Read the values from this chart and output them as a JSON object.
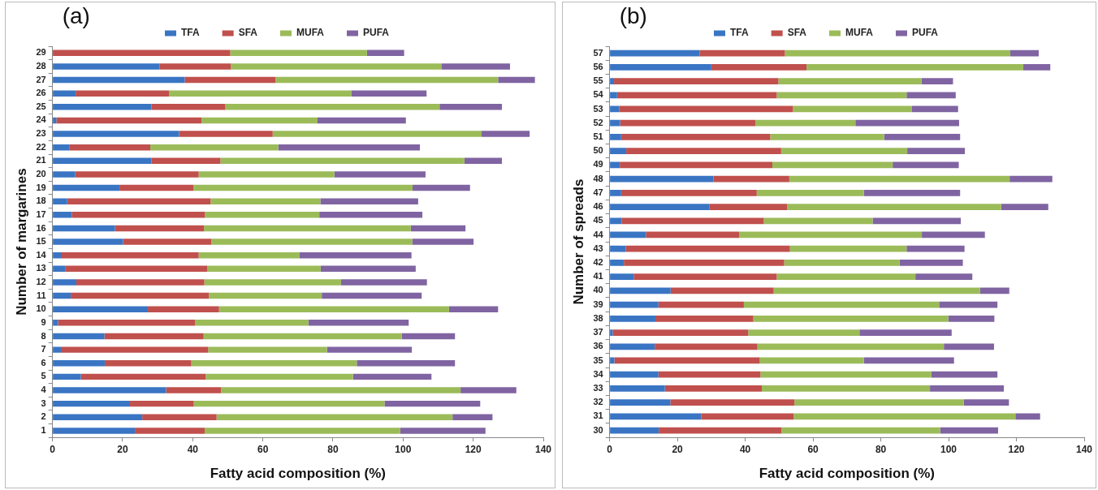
{
  "chart_data": [
    {
      "type": "bar",
      "title": "(a)",
      "xlabel": "Fatty acid composition (%)",
      "ylabel": "Number of margarines",
      "orientation": "horizontal",
      "stacked": true,
      "legend": "top",
      "grid": false,
      "xlim": [
        0,
        140
      ],
      "xticks": [
        0,
        20,
        40,
        60,
        80,
        100,
        120,
        140
      ],
      "categories": [
        "29",
        "28",
        "27",
        "26",
        "25",
        "24",
        "23",
        "22",
        "21",
        "20",
        "19",
        "18",
        "17",
        "16",
        "15",
        "14",
        "13",
        "12",
        "11",
        "10",
        "9",
        "8",
        "7",
        "6",
        "5",
        "4",
        "3",
        "2",
        "1"
      ],
      "series": [
        {
          "name": "TFA",
          "color": "#3a75c4",
          "values": [
            0,
            30.5,
            37.7,
            6.6,
            28.2,
            1.1,
            36.1,
            4.9,
            28.2,
            6.5,
            19.1,
            4.2,
            5.5,
            17.8,
            20.1,
            2.4,
            3.6,
            6.8,
            5.2,
            27.2,
            1.6,
            14.8,
            2.4,
            14.9,
            8.1,
            32.4,
            22.1,
            25.6,
            23.5
          ]
        },
        {
          "name": "SFA",
          "color": "#c0504d",
          "values": [
            50.7,
            20.4,
            25.9,
            26.7,
            21.1,
            41.4,
            26.7,
            23.0,
            19.7,
            35.2,
            21.1,
            40.9,
            38.0,
            25.4,
            25.2,
            39.3,
            40.5,
            36.5,
            39.4,
            20.3,
            39.1,
            28.3,
            42.0,
            24.7,
            35.6,
            15.7,
            18.2,
            21.2,
            19.9
          ]
        },
        {
          "name": "MUFA",
          "color": "#9bbb59",
          "values": [
            39.0,
            60.0,
            63.5,
            51.9,
            61.1,
            33.1,
            59.6,
            36.5,
            69.6,
            38.7,
            62.5,
            31.3,
            32.6,
            59.0,
            57.3,
            28.8,
            32.4,
            39.0,
            32.2,
            65.6,
            32.3,
            56.5,
            33.9,
            47.2,
            42.0,
            68.3,
            54.4,
            67.3,
            55.8
          ]
        },
        {
          "name": "PUFA",
          "color": "#8064a2",
          "values": [
            10.6,
            19.6,
            10.5,
            21.5,
            17.8,
            25.2,
            13.7,
            40.4,
            10.7,
            26.0,
            16.4,
            27.9,
            29.4,
            15.6,
            17.5,
            31.9,
            27.1,
            24.5,
            28.5,
            14.0,
            28.6,
            15.2,
            24.2,
            28.0,
            22.4,
            15.9,
            27.3,
            11.4,
            24.3
          ]
        }
      ]
    },
    {
      "type": "bar",
      "title": "(b)",
      "xlabel": "Fatty acid composition (%)",
      "ylabel": "Number of spreads",
      "orientation": "horizontal",
      "stacked": true,
      "legend": "top",
      "grid": false,
      "xlim": [
        0,
        140
      ],
      "xticks": [
        0,
        20,
        40,
        60,
        80,
        100,
        120,
        140
      ],
      "categories": [
        "57",
        "56",
        "55",
        "54",
        "53",
        "52",
        "51",
        "50",
        "49",
        "48",
        "47",
        "46",
        "45",
        "44",
        "43",
        "42",
        "41",
        "40",
        "39",
        "38",
        "37",
        "36",
        "35",
        "34",
        "33",
        "32",
        "31",
        "30"
      ],
      "series": [
        {
          "name": "TFA",
          "color": "#3a75c4",
          "values": [
            26.6,
            30.0,
            1.3,
            2.2,
            2.8,
            3.1,
            3.4,
            4.9,
            3.0,
            30.6,
            3.4,
            29.5,
            3.5,
            10.7,
            4.8,
            4.2,
            7.1,
            18.0,
            14.4,
            13.5,
            0.9,
            13.3,
            1.4,
            14.4,
            16.3,
            17.9,
            27.0,
            14.5
          ]
        },
        {
          "name": "SFA",
          "color": "#c0504d",
          "values": [
            25.1,
            28.1,
            48.5,
            47.1,
            51.3,
            39.9,
            44.0,
            45.7,
            45.0,
            22.4,
            40.0,
            22.9,
            42.0,
            27.5,
            48.4,
            47.3,
            42.2,
            30.4,
            25.2,
            28.9,
            40.0,
            30.3,
            42.9,
            30.1,
            28.6,
            36.6,
            27.3,
            36.2
          ]
        },
        {
          "name": "MUFA",
          "color": "#9bbb59",
          "values": [
            66.5,
            63.9,
            42.2,
            38.3,
            35.1,
            29.5,
            33.6,
            37.2,
            35.5,
            65.0,
            31.6,
            63.1,
            32.1,
            53.9,
            34.4,
            34.0,
            40.9,
            60.9,
            57.6,
            57.5,
            32.8,
            55.0,
            30.7,
            50.4,
            49.6,
            50.0,
            65.4,
            46.8
          ]
        },
        {
          "name": "PUFA",
          "color": "#8064a2",
          "values": [
            8.4,
            8.0,
            9.3,
            14.5,
            13.6,
            30.6,
            22.4,
            17.0,
            19.5,
            12.6,
            28.4,
            13.9,
            26.0,
            18.6,
            17.1,
            18.7,
            16.8,
            8.6,
            17.2,
            13.6,
            27.2,
            14.8,
            26.6,
            19.5,
            21.8,
            13.3,
            7.3,
            17.1
          ]
        }
      ]
    }
  ]
}
